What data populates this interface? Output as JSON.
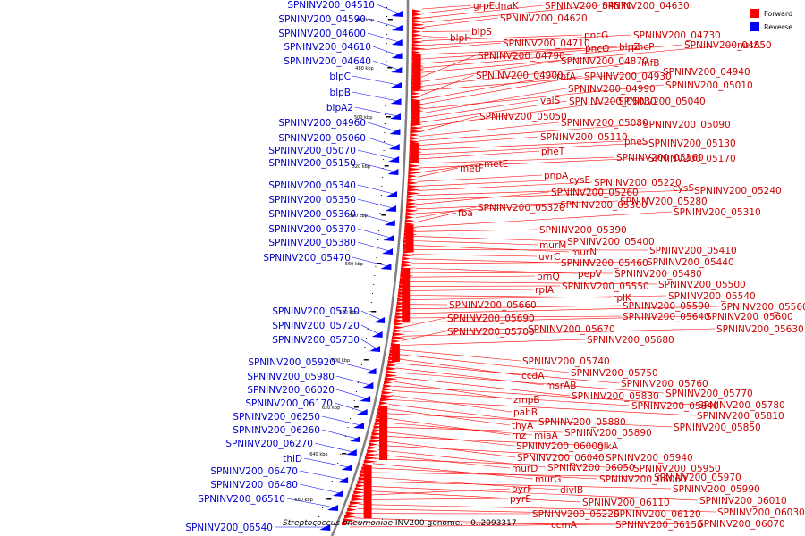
{
  "colors": {
    "forward": "#ff0000",
    "reverse": "#0000ff",
    "backbone": "#808080",
    "forward_text": "#cc0000",
    "reverse_text": "#0000cc"
  },
  "legend": [
    {
      "label": "Forward",
      "color": "#ff0000"
    },
    {
      "label": "Reverse",
      "color": "#0000ff"
    }
  ],
  "caption_prefix": "Streptococcus pneumoniae",
  "caption_suffix": " INV200 genome. - 0..2093317",
  "scale_ticks": [
    "460 kbp",
    "480 kbp",
    "500 kbp",
    "520 kbp",
    "540 kbp",
    "560 kbp",
    "580 kbp",
    "600 kbp",
    "620 kbp",
    "640 kbp",
    "660 kbp"
  ],
  "reverse_genes": [
    "SPNINV200_04510",
    "SPNINV200_04590",
    "SPNINV200_04600",
    "SPNINV200_04610",
    "SPNINV200_04640",
    "blpC",
    "blpB",
    "blpA2",
    "SPNINV200_04960",
    "SPNINV200_05060",
    "SPNINV200_05070",
    "SPNINV200_05150",
    "SPNINV200_05340",
    "SPNINV200_05350",
    "SPNINV200_05360",
    "SPNINV200_05370",
    "SPNINV200_05380",
    "SPNINV200_05470",
    "SPNINV200_05710",
    "SPNINV200_05720",
    "SPNINV200_05730",
    "SPNINV200_05920",
    "SPNINV200_05980",
    "SPNINV200_06020",
    "SPNINV200_06170",
    "SPNINV200_06250",
    "SPNINV200_06260",
    "SPNINV200_06270",
    "thiD",
    "SPNINV200_06470",
    "SPNINV200_06480",
    "SPNINV200_06510",
    "SPNINV200_06540"
  ],
  "forward_genes": [
    "grpE",
    "dnaK",
    "SPNINV200_04570",
    "SPNINV200_04630",
    "SPNINV200_04620",
    "blpS",
    "blpH",
    "pncG",
    "SPNINV200_04730",
    "SPNINV200_04710",
    "pncO",
    "blpZ",
    "pncP",
    "SPNINV200_04850",
    "nusA",
    "SPNINV200_04790",
    "SPNINV200_04870",
    "infB",
    "SPNINV200_04940",
    "SPNINV200_04900",
    "rbfA",
    "SPNINV200_04930",
    "SPNINV200_05010",
    "SPNINV200_04990",
    "valS",
    "SPNINV200_05030",
    "SPNINV200_05040",
    "SPNINV200_05050",
    "SPNINV200_05080",
    "SPNINV200_05090",
    "SPNINV200_05110",
    "pheS",
    "SPNINV200_05130",
    "pheT",
    "SPNINV200_05160",
    "SPNINV200_05170",
    "metE",
    "metF",
    "pnpA",
    "cysE",
    "SPNINV200_05220",
    "cysS",
    "SPNINV200_05240",
    "SPNINV200_05260",
    "SPNINV200_05280",
    "SPNINV200_05300",
    "SPNINV200_05320",
    "fba",
    "SPNINV200_05310",
    "SPNINV200_05390",
    "SPNINV200_05400",
    "murM",
    "murN",
    "SPNINV200_05410",
    "uvrC",
    "SPNINV200_05460",
    "SPNINV200_05440",
    "pepV",
    "SPNINV200_05480",
    "brnQ",
    "SPNINV200_05500",
    "SPNINV200_05550",
    "rplA",
    "rplK",
    "SPNINV200_05540",
    "SPNINV200_05660",
    "SPNINV200_05590",
    "SPNINV200_05560",
    "SPNINV200_05640",
    "SPNINV200_05600",
    "SPNINV200_05690",
    "SPNINV200_05670",
    "SPNINV200_05630",
    "SPNINV200_05700",
    "SPNINV200_05680",
    "SPNINV200_05740",
    "SPNINV200_05750",
    "ccdA",
    "SPNINV200_05760",
    "msrAB",
    "SPNINV200_05770",
    "SPNINV200_05830",
    "zmpB",
    "SPNINV200_05780",
    "SPNINV200_05840",
    "pabB",
    "SPNINV200_05810",
    "SPNINV200_05880",
    "thyA",
    "SPNINV200_05850",
    "rnz",
    "miaA",
    "SPNINV200_05890",
    "SPNINV200_06000",
    "glkA",
    "SPNINV200_06040",
    "SPNINV200_05940",
    "SPNINV200_06050",
    "murD",
    "SPNINV200_05950",
    "murG",
    "SPNINV200_06060",
    "SPNINV200_05970",
    "divIB",
    "SPNINV200_05990",
    "SPNINV200_06010",
    "SPNINV200_06110",
    "pyrF",
    "pyrE",
    "SPNINV200_06030",
    "SPNINV200_06120",
    "SPNINV200_06220",
    "ccmA",
    "SPNINV200_06150",
    "SPNINV200_06070"
  ]
}
